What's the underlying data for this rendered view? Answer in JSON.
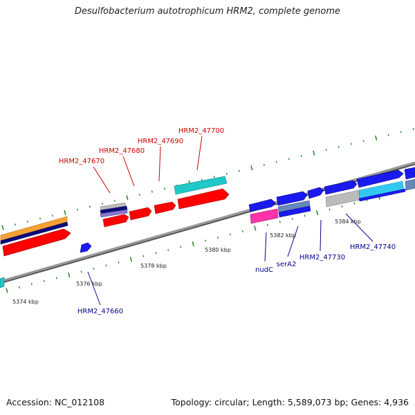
{
  "title": "Desulfobacterium autotrophicum HRM2, complete genome",
  "footer": {
    "accession": "Accession: NC_012108",
    "topology": "Topology: circular; Length: 5,589,073 bp; Genes: 4,936"
  },
  "colors": {
    "backbone": "#808080",
    "tick": "#2e8b2e",
    "label_red": "#cc0000",
    "label_blue": "#00008b",
    "red": "#ff0000",
    "cyan": "#20c8c8",
    "orange": "#f5a033",
    "navy": "#0a0a7a",
    "blue": "#1a1aee",
    "light_blue": "#33c8f0",
    "gray": "#bbbbbb",
    "pink": "#ff33aa",
    "steel": "#6688bb",
    "lavender": "#8877cc"
  },
  "scale_labels": [
    "5374 kbp",
    "5376 kbp",
    "5378 kbp",
    "5380 kbp",
    "5382 kbp",
    "5384 kbp"
  ],
  "gene_labels": {
    "HRM2_47670": "HRM2_47670",
    "HRM2_47680": "HRM2_47680",
    "HRM2_47690": "HRM2_47690",
    "HRM2_47700": "HRM2_47700",
    "HRM2_47660": "HRM2_47660",
    "nudC": "nudC",
    "serA2": "serA2",
    "HRM2_47730": "HRM2_47730",
    "HRM2_47740": "HRM2_47740"
  }
}
